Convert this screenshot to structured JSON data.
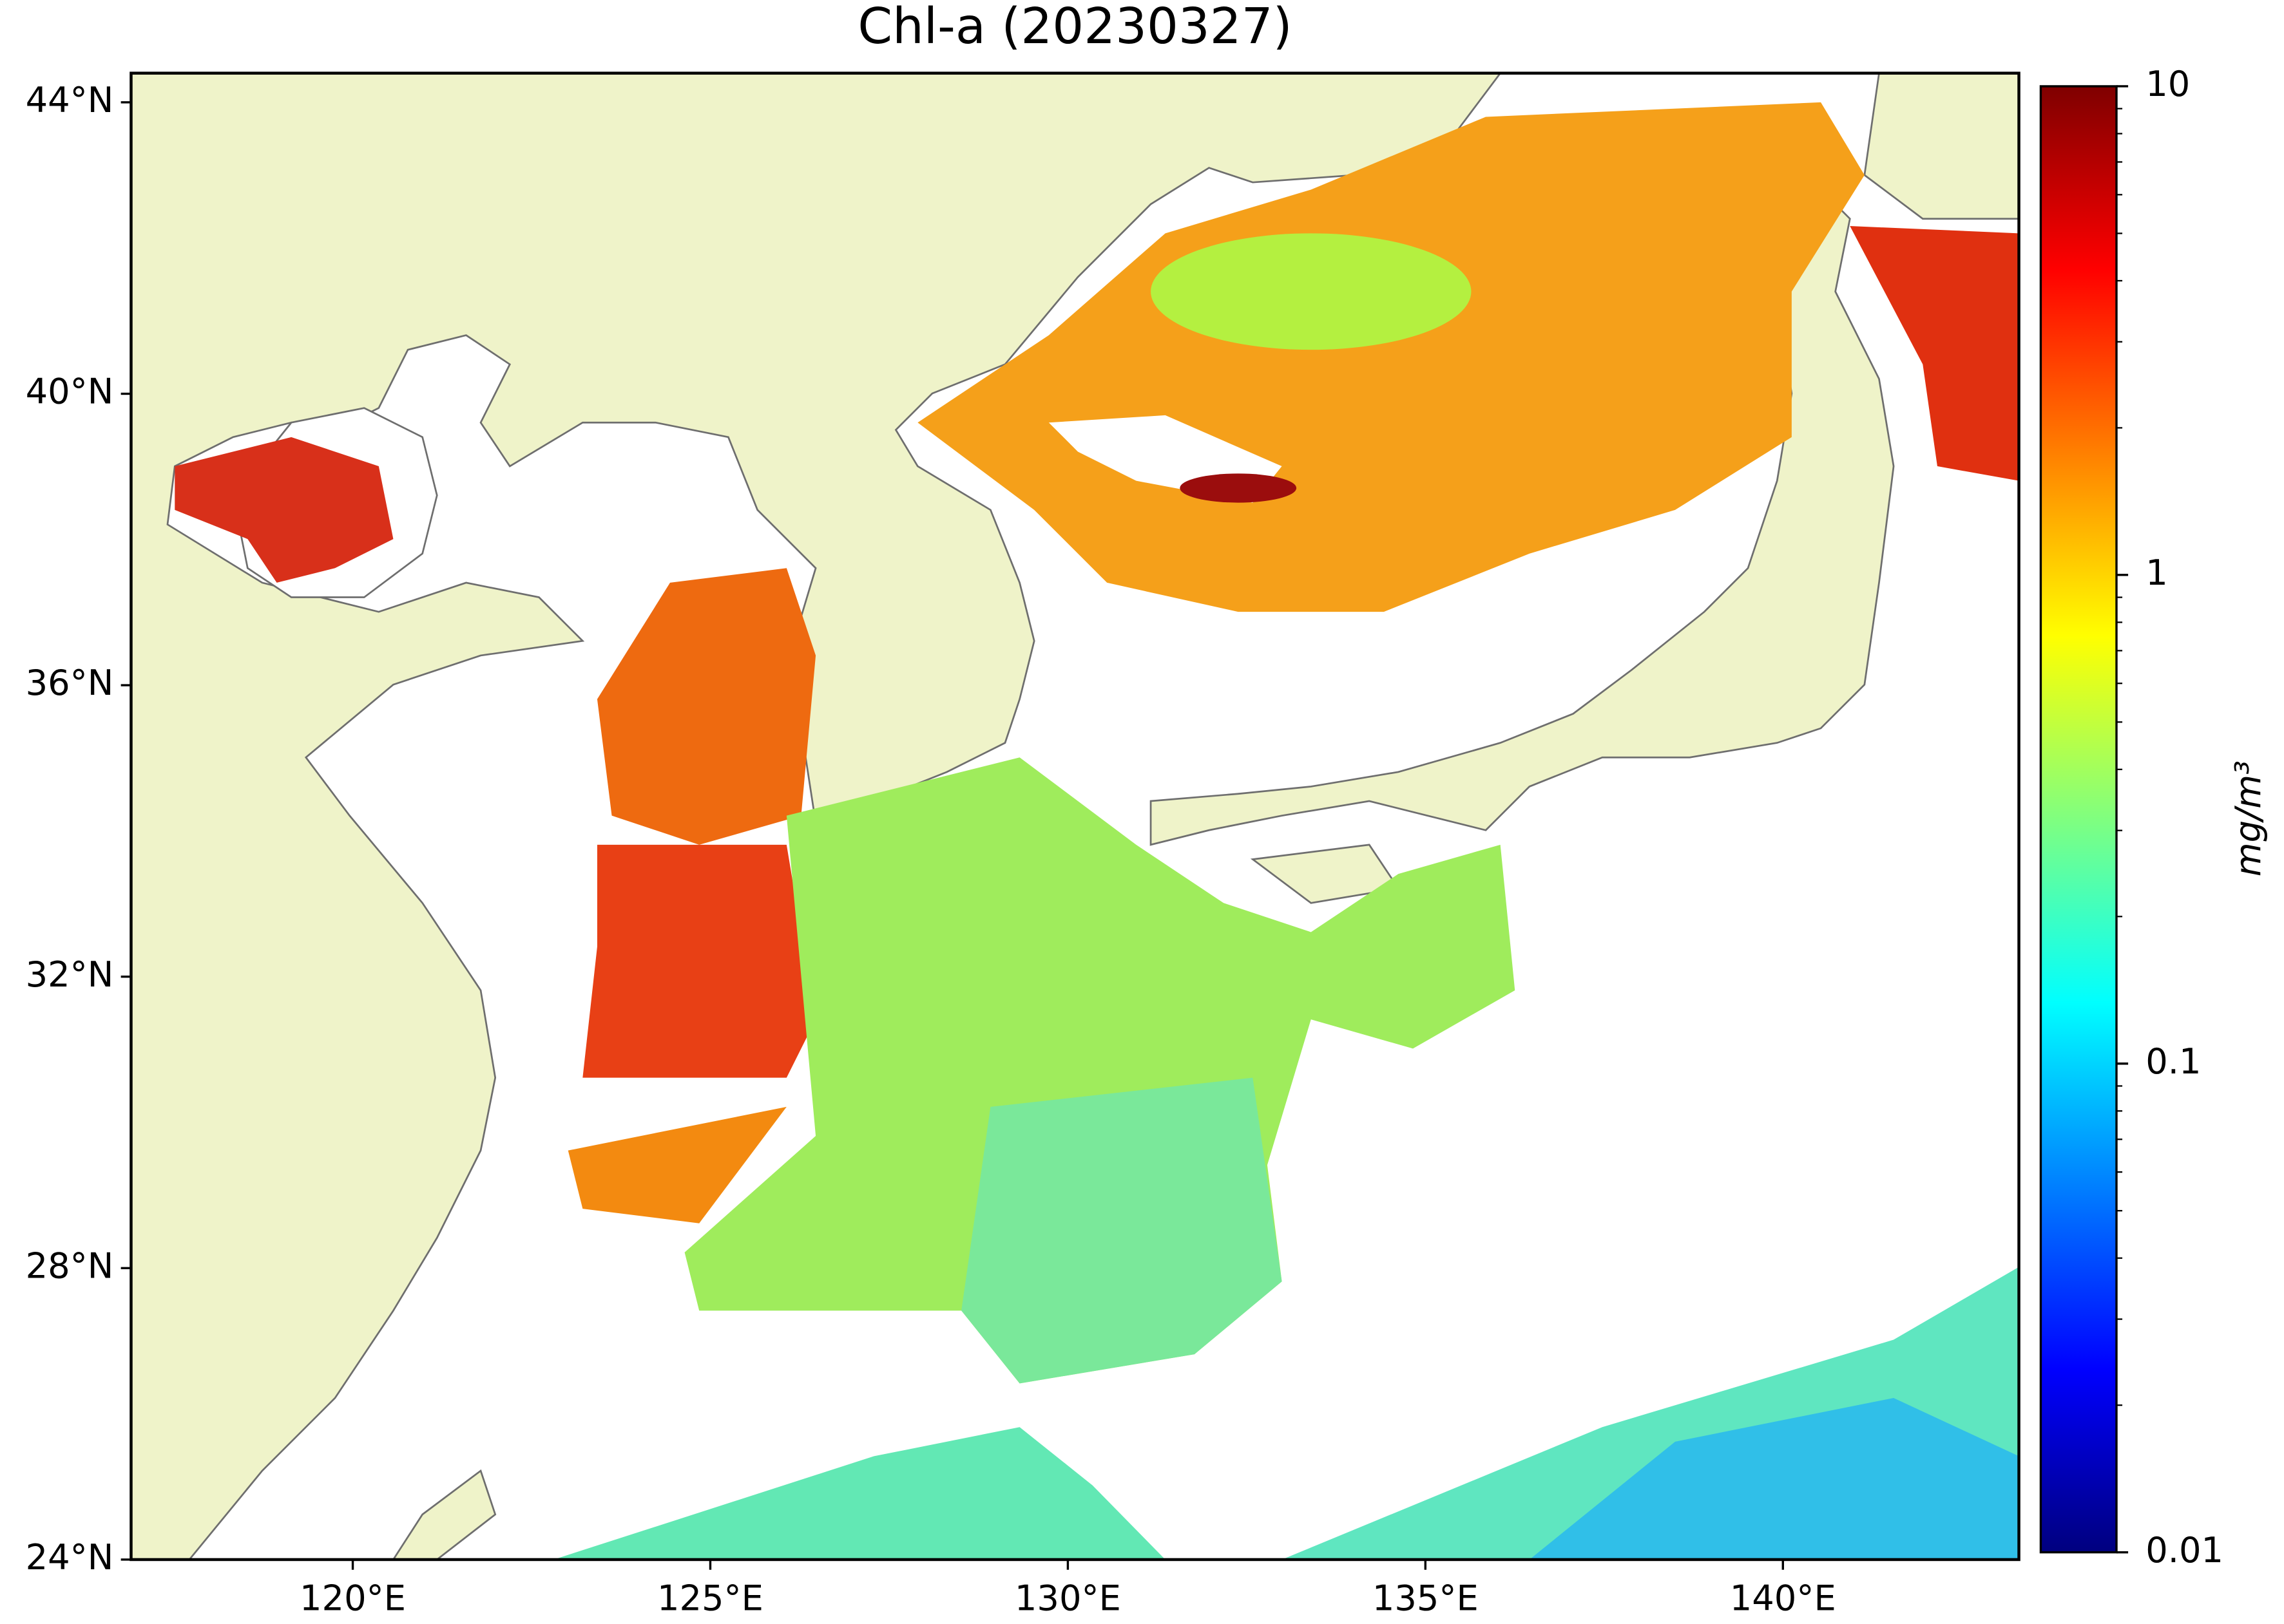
{
  "chart_data": {
    "type": "map",
    "title": "Chl-a (20230327)",
    "xlim": [
      116.9,
      143.3
    ],
    "ylim": [
      24,
      44.4
    ],
    "xticks": [
      {
        "value": 120,
        "label": "120°E"
      },
      {
        "value": 125,
        "label": "125°E"
      },
      {
        "value": 130,
        "label": "130°E"
      },
      {
        "value": 135,
        "label": "135°E"
      },
      {
        "value": 140,
        "label": "140°E"
      }
    ],
    "yticks": [
      {
        "value": 24,
        "label": "24°N"
      },
      {
        "value": 28,
        "label": "28°N"
      },
      {
        "value": 32,
        "label": "32°N"
      },
      {
        "value": 36,
        "label": "36°N"
      },
      {
        "value": 40,
        "label": "40°N"
      },
      {
        "value": 44,
        "label": "44°N"
      }
    ],
    "colorbar": {
      "label": "mg/m³",
      "colormap": "jet",
      "log": true,
      "lim": [
        0.01,
        10
      ],
      "ticks": [
        0.01,
        0.1,
        1,
        10
      ],
      "minor_ticks": [
        0.02,
        0.03,
        0.04,
        0.05,
        0.06,
        0.07,
        0.08,
        0.09,
        0.2,
        0.3,
        0.4,
        0.5,
        0.6,
        0.7,
        0.8,
        0.9,
        2,
        3,
        4,
        5,
        6,
        7,
        8,
        9
      ]
    }
  }
}
